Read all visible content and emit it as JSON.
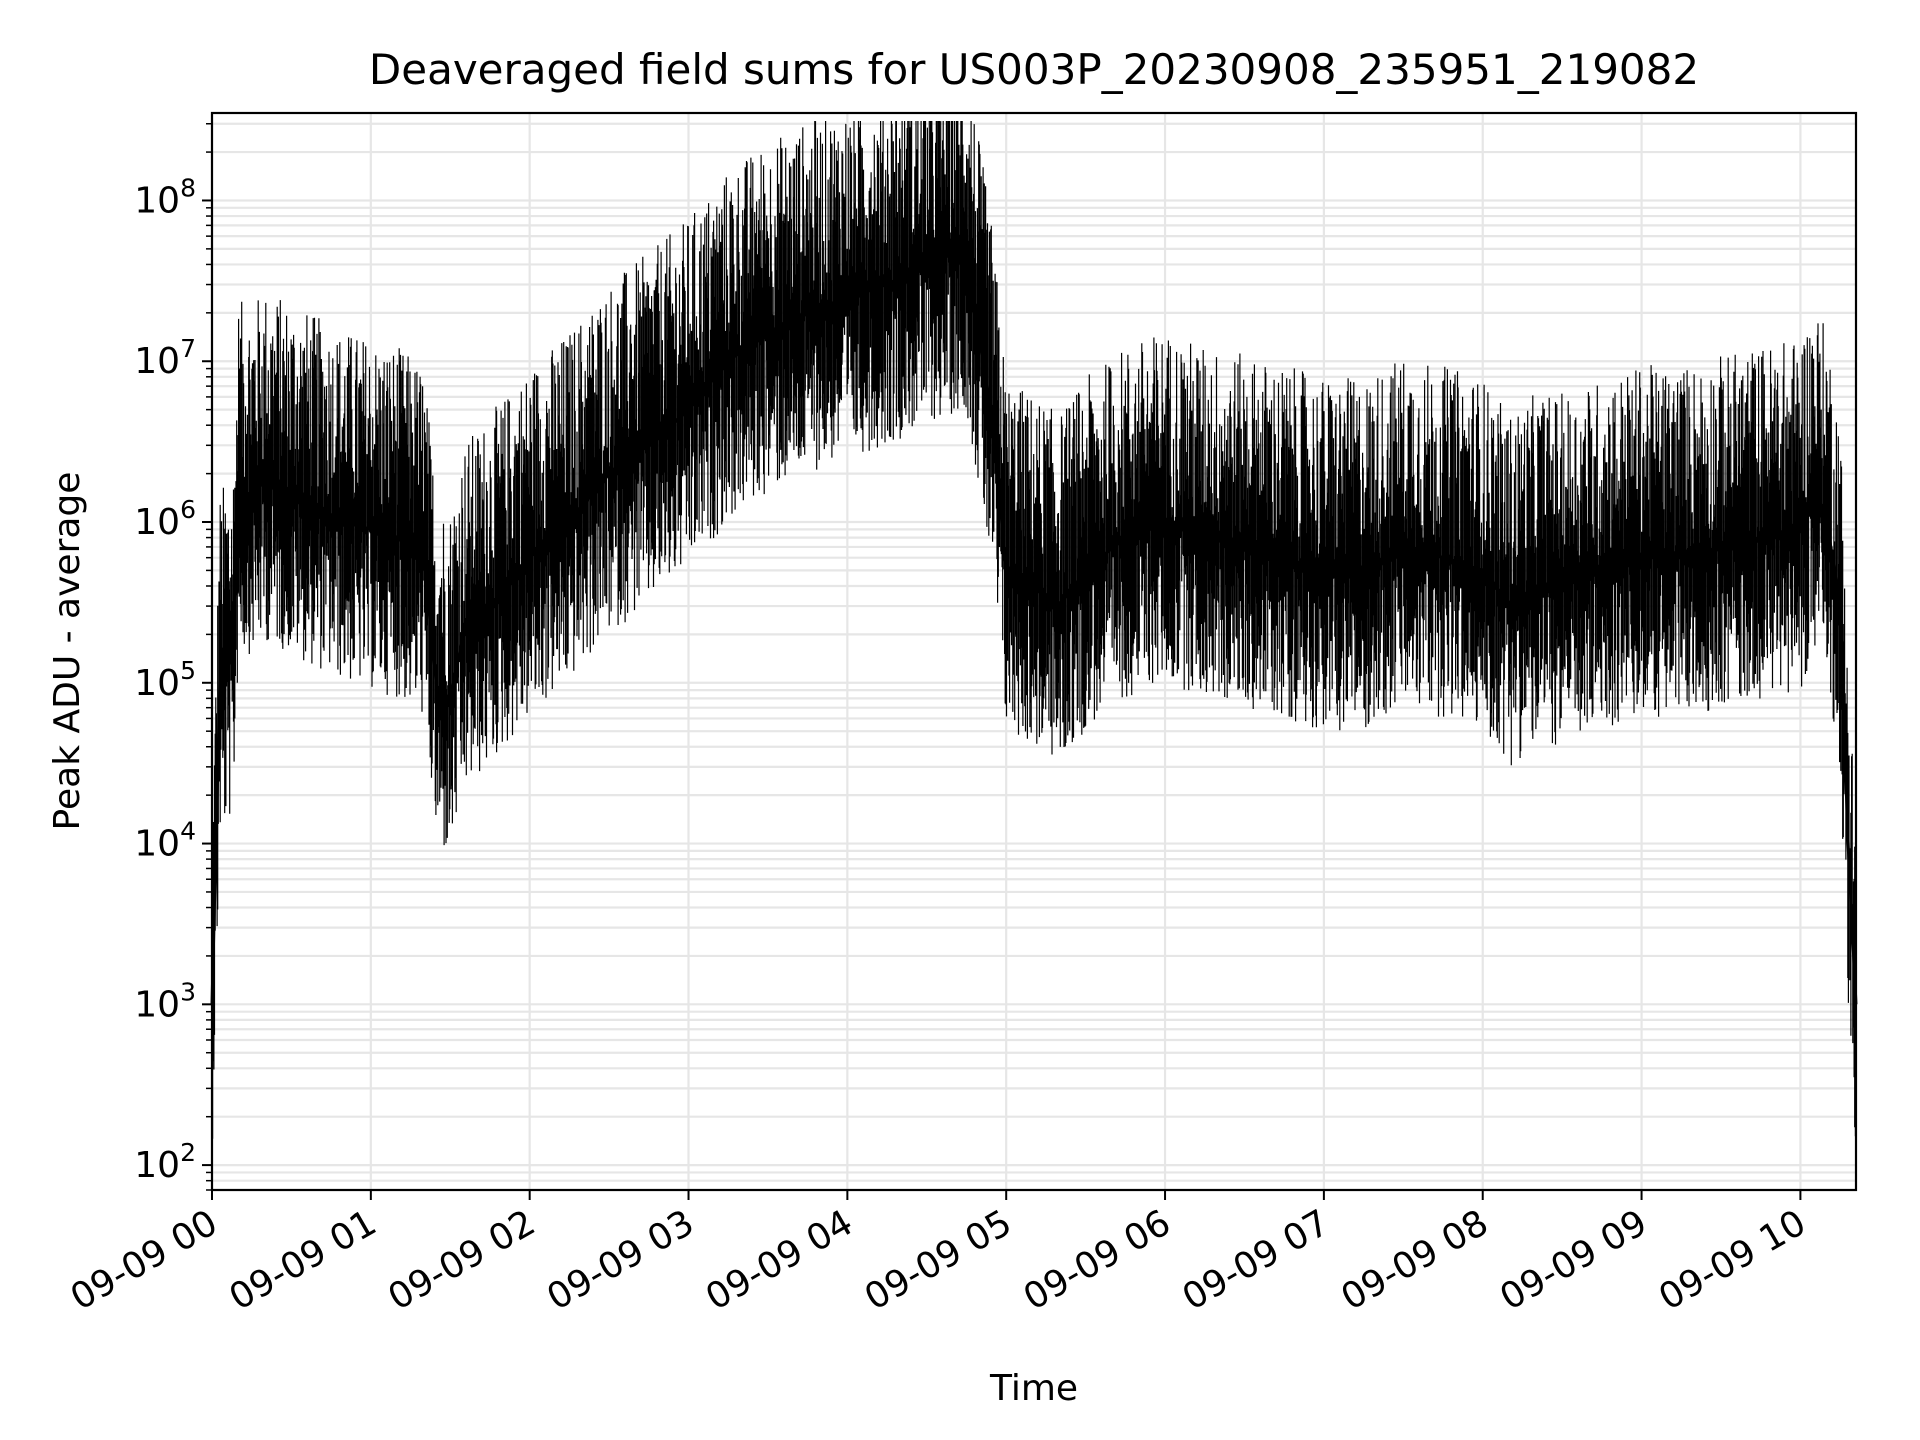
{
  "chart_data": {
    "type": "line",
    "title": "Deaveraged field sums for US003P_20230908_235951_219082",
    "xlabel": "Time",
    "ylabel": "Peak ADU - average",
    "yscale": "log",
    "ylim": [
      70,
      350000000
    ],
    "xlim": [
      "09-09 00:00",
      "09-09 10:21"
    ],
    "grid": "on",
    "line_color": "#000000",
    "grid_color": "#e6e6e6",
    "x_tick_labels": [
      "09-09 00",
      "09-09 01",
      "09-09 02",
      "09-09 03",
      "09-09 04",
      "09-09 05",
      "09-09 06",
      "09-09 07",
      "09-09 08",
      "09-09 09",
      "09-09 10"
    ],
    "y_tick_labels": [
      {
        "base": "10",
        "exp": "2"
      },
      {
        "base": "10",
        "exp": "3"
      },
      {
        "base": "10",
        "exp": "4"
      },
      {
        "base": "10",
        "exp": "5"
      },
      {
        "base": "10",
        "exp": "6"
      },
      {
        "base": "10",
        "exp": "7"
      },
      {
        "base": "10",
        "exp": "8"
      }
    ],
    "series": [
      {
        "x": [
          "09-09 00:00",
          "09-09 00:03",
          "09-09 00:08",
          "09-09 00:10",
          "09-09 00:15",
          "09-09 00:20",
          "09-09 00:30",
          "09-09 00:40",
          "09-09 00:50",
          "09-09 01:00",
          "09-09 01:10",
          "09-09 01:20",
          "09-09 01:25",
          "09-09 01:30",
          "09-09 01:35",
          "09-09 01:45",
          "09-09 02:00",
          "09-09 02:15",
          "09-09 02:30",
          "09-09 02:45",
          "09-09 03:00",
          "09-09 03:15",
          "09-09 03:30",
          "09-09 03:45",
          "09-09 04:00",
          "09-09 04:15",
          "09-09 04:30",
          "09-09 04:45",
          "09-09 04:55",
          "09-09 05:00",
          "09-09 05:10",
          "09-09 05:20",
          "09-09 05:30",
          "09-09 05:45",
          "09-09 06:00",
          "09-09 06:15",
          "09-09 06:30",
          "09-09 06:45",
          "09-09 07:00",
          "09-09 07:15",
          "09-09 07:30",
          "09-09 07:45",
          "09-09 08:00",
          "09-09 08:10",
          "09-09 08:20",
          "09-09 08:30",
          "09-09 08:45",
          "09-09 09:00",
          "09-09 09:15",
          "09-09 09:30",
          "09-09 09:45",
          "09-09 10:00",
          "09-09 10:05",
          "09-09 10:10",
          "09-09 10:15",
          "09-09 10:18",
          "09-09 10:21"
        ],
        "values": [
          1000,
          100000,
          150000,
          1500000,
          1500000,
          1800000,
          1500000,
          1200000,
          1000000,
          900000,
          800000,
          600000,
          90000,
          80000,
          200000,
          300000,
          600000,
          1000000,
          2000000,
          3000000,
          5000000,
          10000000,
          15000000,
          20000000,
          25000000,
          30000000,
          40000000,
          50000000,
          4000000,
          500000,
          400000,
          300000,
          500000,
          800000,
          1000000,
          800000,
          700000,
          600000,
          500000,
          500000,
          700000,
          600000,
          500000,
          300000,
          400000,
          400000,
          500000,
          600000,
          600000,
          700000,
          800000,
          900000,
          1500000,
          1000000,
          300000,
          10000,
          1000
        ]
      }
    ]
  }
}
